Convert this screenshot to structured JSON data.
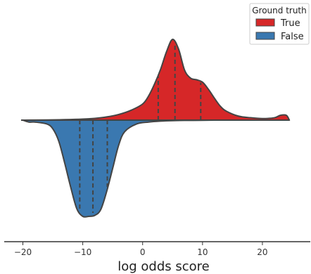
{
  "chart_data": {
    "type": "area",
    "subtype": "split-violin",
    "orientation": "horizontal",
    "xlabel": "log odds score",
    "xlim": [
      -21,
      26
    ],
    "xticks": [
      -20,
      -10,
      0,
      10,
      20
    ],
    "xtick_labels": [
      "−20",
      "−10",
      "0",
      "10",
      "20"
    ],
    "grid": false,
    "legend": {
      "title": "Ground truth",
      "placement": "top-right",
      "entries": [
        {
          "label": "True",
          "color": "#d62728"
        },
        {
          "label": "False",
          "color": "#3a78b0"
        }
      ]
    },
    "series": [
      {
        "name": "True",
        "side": "upper",
        "color": "#d62728",
        "x": [
          -20,
          -16,
          -13,
          -10,
          -8,
          -6,
          -4,
          -2,
          0,
          1,
          2,
          3,
          4,
          5,
          6,
          7,
          8,
          9,
          10,
          11,
          12,
          13,
          14,
          16,
          18,
          20,
          22,
          23,
          24,
          24.5
        ],
        "density": [
          0.0,
          0.002,
          0.006,
          0.013,
          0.022,
          0.04,
          0.07,
          0.12,
          0.2,
          0.3,
          0.45,
          0.63,
          0.85,
          1.0,
          0.88,
          0.62,
          0.52,
          0.5,
          0.47,
          0.38,
          0.27,
          0.17,
          0.11,
          0.05,
          0.03,
          0.02,
          0.03,
          0.06,
          0.06,
          0.0
        ],
        "quartiles": [
          2.6,
          5.4,
          9.7
        ]
      },
      {
        "name": "False",
        "side": "lower",
        "color": "#3a78b0",
        "x": [
          -20,
          -19,
          -18,
          -16,
          -15,
          -14,
          -13,
          -12,
          -11,
          -10,
          -9,
          -8,
          -7,
          -6,
          -5,
          -4,
          -3,
          -1,
          1,
          3,
          5,
          7,
          10,
          12
        ],
        "density": [
          0.0,
          0.02,
          0.02,
          0.04,
          0.09,
          0.22,
          0.45,
          0.7,
          0.92,
          1.0,
          1.0,
          0.99,
          0.93,
          0.74,
          0.5,
          0.26,
          0.12,
          0.04,
          0.02,
          0.01,
          0.005,
          0.003,
          0.002,
          0.0
        ],
        "quartiles": [
          -10.5,
          -8.3,
          -5.9
        ]
      }
    ]
  }
}
